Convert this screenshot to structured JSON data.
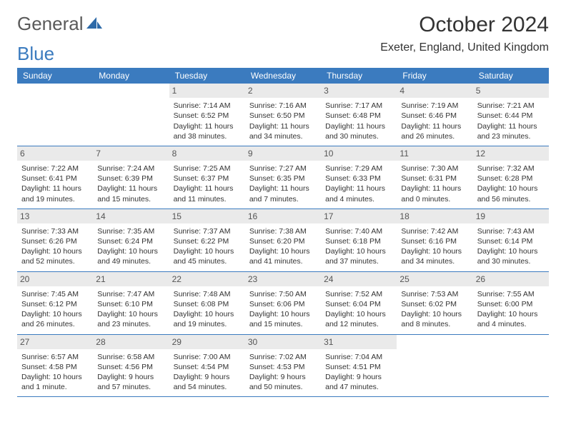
{
  "logo": {
    "text_a": "General",
    "text_b": "Blue"
  },
  "header": {
    "month_title": "October 2024",
    "location": "Exeter, England, United Kingdom"
  },
  "colors": {
    "header_bg": "#3b7bbf",
    "header_text": "#ffffff",
    "daynum_bg": "#eaeaea",
    "border": "#3b7bbf",
    "page_bg": "#ffffff",
    "text": "#333333"
  },
  "weekdays": [
    "Sunday",
    "Monday",
    "Tuesday",
    "Wednesday",
    "Thursday",
    "Friday",
    "Saturday"
  ],
  "weeks": [
    [
      null,
      null,
      {
        "n": "1",
        "sunrise": "7:14 AM",
        "sunset": "6:52 PM",
        "day_h": "11",
        "day_m": "38"
      },
      {
        "n": "2",
        "sunrise": "7:16 AM",
        "sunset": "6:50 PM",
        "day_h": "11",
        "day_m": "34"
      },
      {
        "n": "3",
        "sunrise": "7:17 AM",
        "sunset": "6:48 PM",
        "day_h": "11",
        "day_m": "30"
      },
      {
        "n": "4",
        "sunrise": "7:19 AM",
        "sunset": "6:46 PM",
        "day_h": "11",
        "day_m": "26"
      },
      {
        "n": "5",
        "sunrise": "7:21 AM",
        "sunset": "6:44 PM",
        "day_h": "11",
        "day_m": "23"
      }
    ],
    [
      {
        "n": "6",
        "sunrise": "7:22 AM",
        "sunset": "6:41 PM",
        "day_h": "11",
        "day_m": "19"
      },
      {
        "n": "7",
        "sunrise": "7:24 AM",
        "sunset": "6:39 PM",
        "day_h": "11",
        "day_m": "15"
      },
      {
        "n": "8",
        "sunrise": "7:25 AM",
        "sunset": "6:37 PM",
        "day_h": "11",
        "day_m": "11"
      },
      {
        "n": "9",
        "sunrise": "7:27 AM",
        "sunset": "6:35 PM",
        "day_h": "11",
        "day_m": "7"
      },
      {
        "n": "10",
        "sunrise": "7:29 AM",
        "sunset": "6:33 PM",
        "day_h": "11",
        "day_m": "4"
      },
      {
        "n": "11",
        "sunrise": "7:30 AM",
        "sunset": "6:31 PM",
        "day_h": "11",
        "day_m": "0"
      },
      {
        "n": "12",
        "sunrise": "7:32 AM",
        "sunset": "6:28 PM",
        "day_h": "10",
        "day_m": "56"
      }
    ],
    [
      {
        "n": "13",
        "sunrise": "7:33 AM",
        "sunset": "6:26 PM",
        "day_h": "10",
        "day_m": "52"
      },
      {
        "n": "14",
        "sunrise": "7:35 AM",
        "sunset": "6:24 PM",
        "day_h": "10",
        "day_m": "49"
      },
      {
        "n": "15",
        "sunrise": "7:37 AM",
        "sunset": "6:22 PM",
        "day_h": "10",
        "day_m": "45"
      },
      {
        "n": "16",
        "sunrise": "7:38 AM",
        "sunset": "6:20 PM",
        "day_h": "10",
        "day_m": "41"
      },
      {
        "n": "17",
        "sunrise": "7:40 AM",
        "sunset": "6:18 PM",
        "day_h": "10",
        "day_m": "37"
      },
      {
        "n": "18",
        "sunrise": "7:42 AM",
        "sunset": "6:16 PM",
        "day_h": "10",
        "day_m": "34"
      },
      {
        "n": "19",
        "sunrise": "7:43 AM",
        "sunset": "6:14 PM",
        "day_h": "10",
        "day_m": "30"
      }
    ],
    [
      {
        "n": "20",
        "sunrise": "7:45 AM",
        "sunset": "6:12 PM",
        "day_h": "10",
        "day_m": "26"
      },
      {
        "n": "21",
        "sunrise": "7:47 AM",
        "sunset": "6:10 PM",
        "day_h": "10",
        "day_m": "23"
      },
      {
        "n": "22",
        "sunrise": "7:48 AM",
        "sunset": "6:08 PM",
        "day_h": "10",
        "day_m": "19"
      },
      {
        "n": "23",
        "sunrise": "7:50 AM",
        "sunset": "6:06 PM",
        "day_h": "10",
        "day_m": "15"
      },
      {
        "n": "24",
        "sunrise": "7:52 AM",
        "sunset": "6:04 PM",
        "day_h": "10",
        "day_m": "12"
      },
      {
        "n": "25",
        "sunrise": "7:53 AM",
        "sunset": "6:02 PM",
        "day_h": "10",
        "day_m": "8"
      },
      {
        "n": "26",
        "sunrise": "7:55 AM",
        "sunset": "6:00 PM",
        "day_h": "10",
        "day_m": "4"
      }
    ],
    [
      {
        "n": "27",
        "sunrise": "6:57 AM",
        "sunset": "4:58 PM",
        "day_h": "10",
        "day_m": "1",
        "singular": true
      },
      {
        "n": "28",
        "sunrise": "6:58 AM",
        "sunset": "4:56 PM",
        "day_h": "9",
        "day_m": "57"
      },
      {
        "n": "29",
        "sunrise": "7:00 AM",
        "sunset": "4:54 PM",
        "day_h": "9",
        "day_m": "54"
      },
      {
        "n": "30",
        "sunrise": "7:02 AM",
        "sunset": "4:53 PM",
        "day_h": "9",
        "day_m": "50"
      },
      {
        "n": "31",
        "sunrise": "7:04 AM",
        "sunset": "4:51 PM",
        "day_h": "9",
        "day_m": "47"
      },
      null,
      null
    ]
  ],
  "labels": {
    "sunrise": "Sunrise:",
    "sunset": "Sunset:",
    "daylight": "Daylight:",
    "hours": "hours",
    "and": "and",
    "minutes": "minutes.",
    "minute": "minute."
  }
}
